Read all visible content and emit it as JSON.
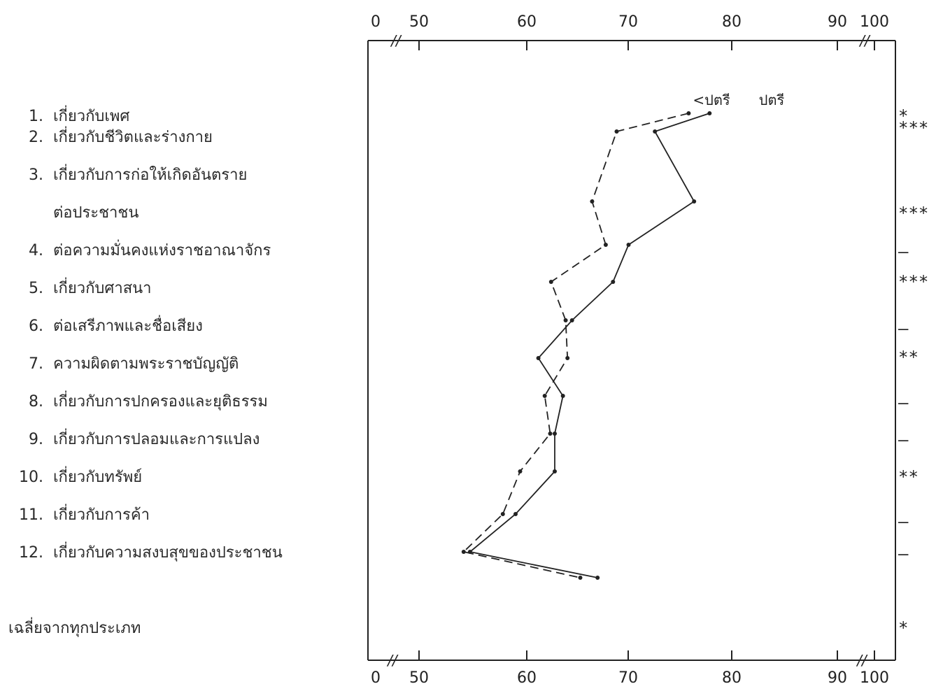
{
  "chart_data": {
    "type": "line",
    "categories": [
      "เกี่ยวกับเพศ",
      "เกี่ยวกับชีวิตและร่างกาย",
      "เกี่ยวกับการก่อให้เกิดอันตราย ต่อประชาชน",
      "ต่อความมั่นคงแห่งราชอาณาจักร",
      "เกี่ยวกับศาสนา",
      "ต่อเสรีภาพและชื่อเสียง",
      "ความผิดตามพระราชบัญญัติ",
      "เกี่ยวกับการปกครองและยุติธรรม",
      "เกี่ยวกับการปลอมและการแปลง",
      "เกี่ยวกับทรัพย์",
      "เกี่ยวกับการค้า",
      "เกี่ยวกับความสงบสุขของประชาชน",
      "เฉลี่ยจากทุกประเภท"
    ],
    "x_ticks": [
      "0",
      "50",
      "60",
      "70",
      "80",
      "90",
      "100"
    ],
    "xlim": [
      50,
      100
    ],
    "axis_break": "//",
    "series": [
      {
        "name": "ปตรี",
        "style": "solid",
        "values": [
          81.9,
          75.9,
          80.2,
          73.0,
          71.3,
          66.8,
          63.1,
          65.8,
          64.9,
          64.9,
          60.6,
          55.6,
          69.6
        ]
      },
      {
        "name": "<ปตรี",
        "style": "dashed",
        "values": [
          79.6,
          71.7,
          69.0,
          70.5,
          64.5,
          66.1,
          66.3,
          63.8,
          64.4,
          61.1,
          59.2,
          54.9,
          67.7
        ]
      }
    ],
    "significance": [
      "*",
      "***",
      "***",
      "–",
      "***",
      "–",
      "**",
      "–",
      "–",
      "**",
      "–",
      "–",
      "*"
    ],
    "grid": false,
    "legend": "top-right"
  },
  "labels": {
    "items": [
      {
        "num": "1.",
        "text": "เกี่ยวกับเพศ"
      },
      {
        "num": "2.",
        "text": "เกี่ยวกับชีวิตและร่างกาย"
      },
      {
        "num": "3.",
        "text": "เกี่ยวกับการก่อให้เกิดอันตราย"
      },
      {
        "num": "",
        "text": "ต่อประชาชน"
      },
      {
        "num": "4.",
        "text": "ต่อความมั่นคงแห่งราชอาณาจักร"
      },
      {
        "num": "5.",
        "text": "เกี่ยวกับศาสนา"
      },
      {
        "num": "6.",
        "text": "ต่อเสรีภาพและชื่อเสียง"
      },
      {
        "num": "7.",
        "text": "ความผิดตามพระราชบัญญัติ"
      },
      {
        "num": "8.",
        "text": "เกี่ยวกับการปกครองและยุติธรรม"
      },
      {
        "num": "9.",
        "text": "เกี่ยวกับการปลอมและการแปลง"
      },
      {
        "num": "10.",
        "text": "เกี่ยวกับทรัพย์"
      },
      {
        "num": "11.",
        "text": "เกี่ยวกับการค้า"
      },
      {
        "num": "12.",
        "text": "เกี่ยวกับความสงบสุขของประชาชน"
      }
    ],
    "average": "เฉลี่ยจากทุกประเภท"
  }
}
